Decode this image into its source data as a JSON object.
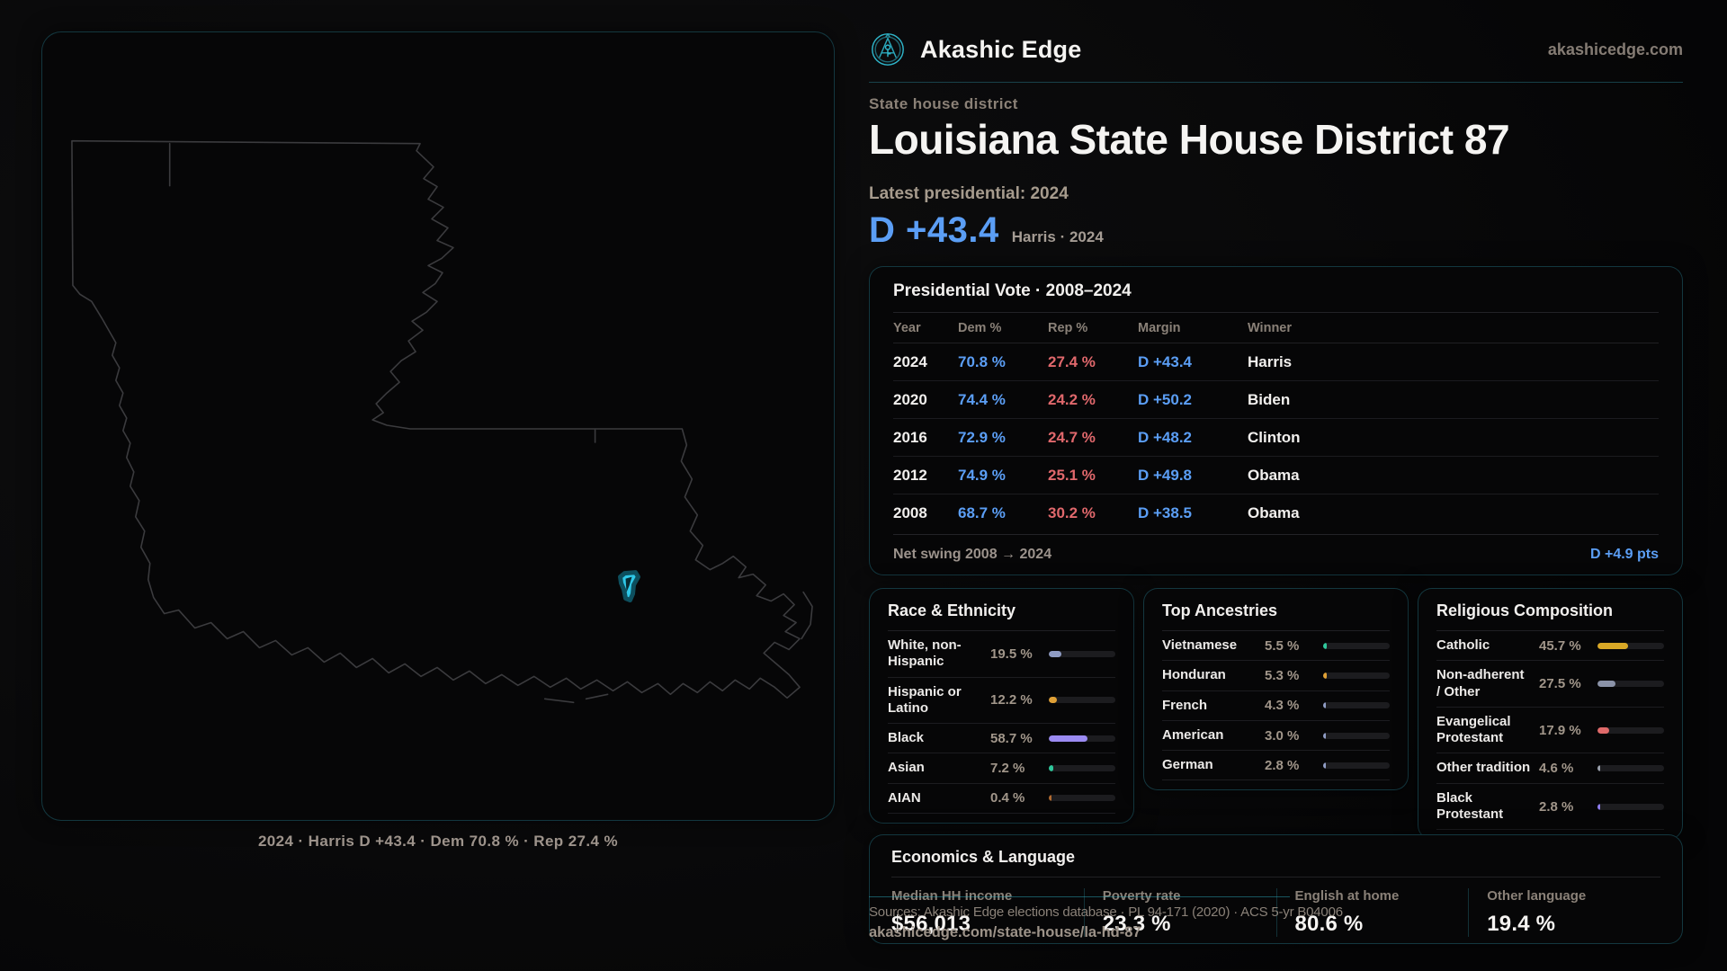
{
  "header": {
    "brand": "Akashic Edge",
    "domain": "akashicedge.com",
    "accent": "#2fb7cc"
  },
  "hero": {
    "kicker": "State house district",
    "title": "Louisiana State House District 87",
    "latest_line": "Latest presidential: 2024",
    "margin_value": "D +43.4",
    "margin_caption": "Harris · 2024",
    "margin_color": "#5b9ef5"
  },
  "map": {
    "caption": "2024 · Harris D +43.4 · Dem 70.8 % · Rep 27.4 %",
    "district_color": "#2fc8e8",
    "outline_color": "#3b3b3e"
  },
  "vote_table": {
    "title": "Presidential Vote · 2008–2024",
    "columns": [
      "Year",
      "Dem %",
      "Rep %",
      "Margin",
      "Winner"
    ],
    "dem_color": "#5b9ef5",
    "rep_color": "#e0686c",
    "rows": [
      {
        "year": "2024",
        "dem": "70.8 %",
        "rep": "27.4 %",
        "margin": "D +43.4",
        "winner": "Harris"
      },
      {
        "year": "2020",
        "dem": "74.4 %",
        "rep": "24.2 %",
        "margin": "D +50.2",
        "winner": "Biden"
      },
      {
        "year": "2016",
        "dem": "72.9 %",
        "rep": "24.7 %",
        "margin": "D +48.2",
        "winner": "Clinton"
      },
      {
        "year": "2012",
        "dem": "74.9 %",
        "rep": "25.1 %",
        "margin": "D +49.8",
        "winner": "Obama"
      },
      {
        "year": "2008",
        "dem": "68.7 %",
        "rep": "30.2 %",
        "margin": "D +38.5",
        "winner": "Obama"
      }
    ],
    "net_swing_label": "Net swing 2008 → 2024",
    "net_swing_value": "D +4.9 pts"
  },
  "demographic_cards": [
    {
      "id": "race-ethnicity",
      "title": "Race & Ethnicity",
      "rows": [
        {
          "label": "White, non-Hispanic",
          "value": "19.5 %",
          "pct": 19.5,
          "color": "#8f9cc4"
        },
        {
          "label": "Hispanic or Latino",
          "value": "12.2 %",
          "pct": 12.2,
          "color": "#dfa036"
        },
        {
          "label": "Black",
          "value": "58.7 %",
          "pct": 58.7,
          "color": "#9b8bf2"
        },
        {
          "label": "Asian",
          "value": "7.2 %",
          "pct": 7.2,
          "color": "#2fc79b"
        },
        {
          "label": "AIAN",
          "value": "0.4 %",
          "pct": 0.4,
          "color": "#b06a30"
        }
      ]
    },
    {
      "id": "top-ancestries",
      "title": "Top Ancestries",
      "rows": [
        {
          "label": "Vietnamese",
          "value": "5.5 %",
          "pct": 5.5,
          "color": "#2fc79b"
        },
        {
          "label": "Honduran",
          "value": "5.3 %",
          "pct": 5.3,
          "color": "#dfa036"
        },
        {
          "label": "French",
          "value": "4.3 %",
          "pct": 4.3,
          "color": "#8f9cc4"
        },
        {
          "label": "American",
          "value": "3.0 %",
          "pct": 3.0,
          "color": "#8f9cc4"
        },
        {
          "label": "German",
          "value": "2.8 %",
          "pct": 2.8,
          "color": "#8f9cc4"
        }
      ]
    },
    {
      "id": "religious-composition",
      "title": "Religious Composition",
      "rows": [
        {
          "label": "Catholic",
          "value": "45.7 %",
          "pct": 45.7,
          "color": "#d9a826"
        },
        {
          "label": "Non-adherent / Other",
          "value": "27.5 %",
          "pct": 27.5,
          "color": "#8b93a8"
        },
        {
          "label": "Evangelical Protestant",
          "value": "17.9 %",
          "pct": 17.9,
          "color": "#e06a6a"
        },
        {
          "label": "Other tradition",
          "value": "4.6 %",
          "pct": 4.6,
          "color": "#9aa0ac"
        },
        {
          "label": "Black Protestant",
          "value": "2.8 %",
          "pct": 2.8,
          "color": "#8f7df0"
        }
      ]
    }
  ],
  "economics": {
    "title": "Economics & Language",
    "stats": [
      {
        "label": "Median HH income",
        "value": "$56,013"
      },
      {
        "label": "Poverty rate",
        "value": "23.3 %"
      },
      {
        "label": "English at home",
        "value": "80.6 %"
      },
      {
        "label": "Other language",
        "value": "19.4 %"
      }
    ]
  },
  "footer": {
    "sources": "Sources: Akashic Edge elections database · PL 94-171 (2020) · ACS 5-yr B04006",
    "permalink": "akashicedge.com/state-house/la-hd-87"
  }
}
